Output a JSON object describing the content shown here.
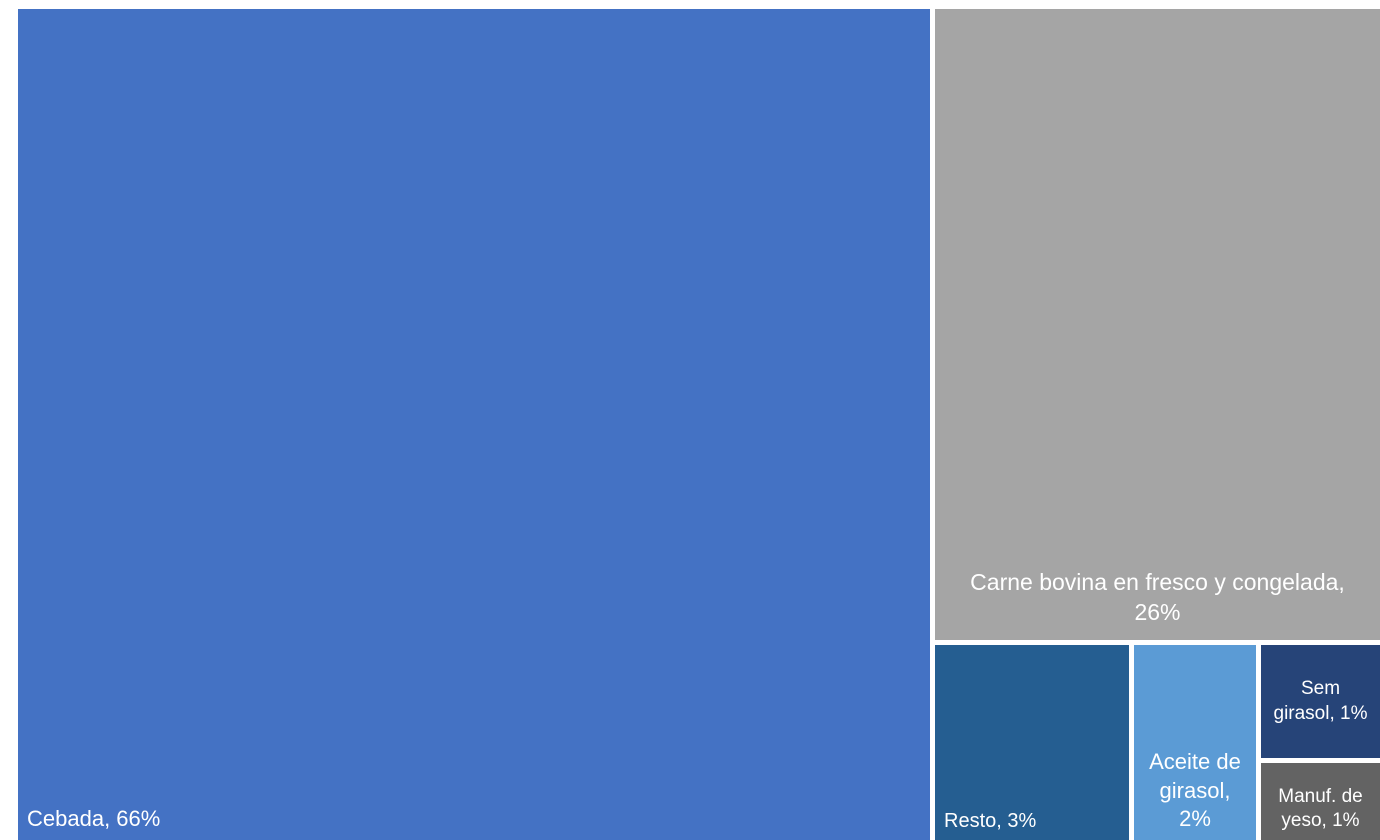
{
  "chart_data": {
    "type": "treemap",
    "title": "",
    "items": [
      {
        "label": "Cebada, 66%",
        "name": "Cebada",
        "value": 66,
        "color": "#4472C4"
      },
      {
        "label": "Carne bovina en fresco y congelada, 26%",
        "name": "Carne bovina en fresco y congelada",
        "value": 26,
        "color": "#A5A5A5"
      },
      {
        "label": "Resto, 3%",
        "name": "Resto",
        "value": 3,
        "color": "#255E91"
      },
      {
        "label": "Aceite de girasol, 2%",
        "name": "Aceite de girasol",
        "value": 2,
        "color": "#5B9BD5"
      },
      {
        "label": "Sem girasol, 1%",
        "name": "Sem girasol",
        "value": 1,
        "color": "#264478"
      },
      {
        "label": "Manuf. de yeso, 1%",
        "name": "Manuf. de yeso",
        "value": 1,
        "color": "#636363"
      }
    ]
  }
}
